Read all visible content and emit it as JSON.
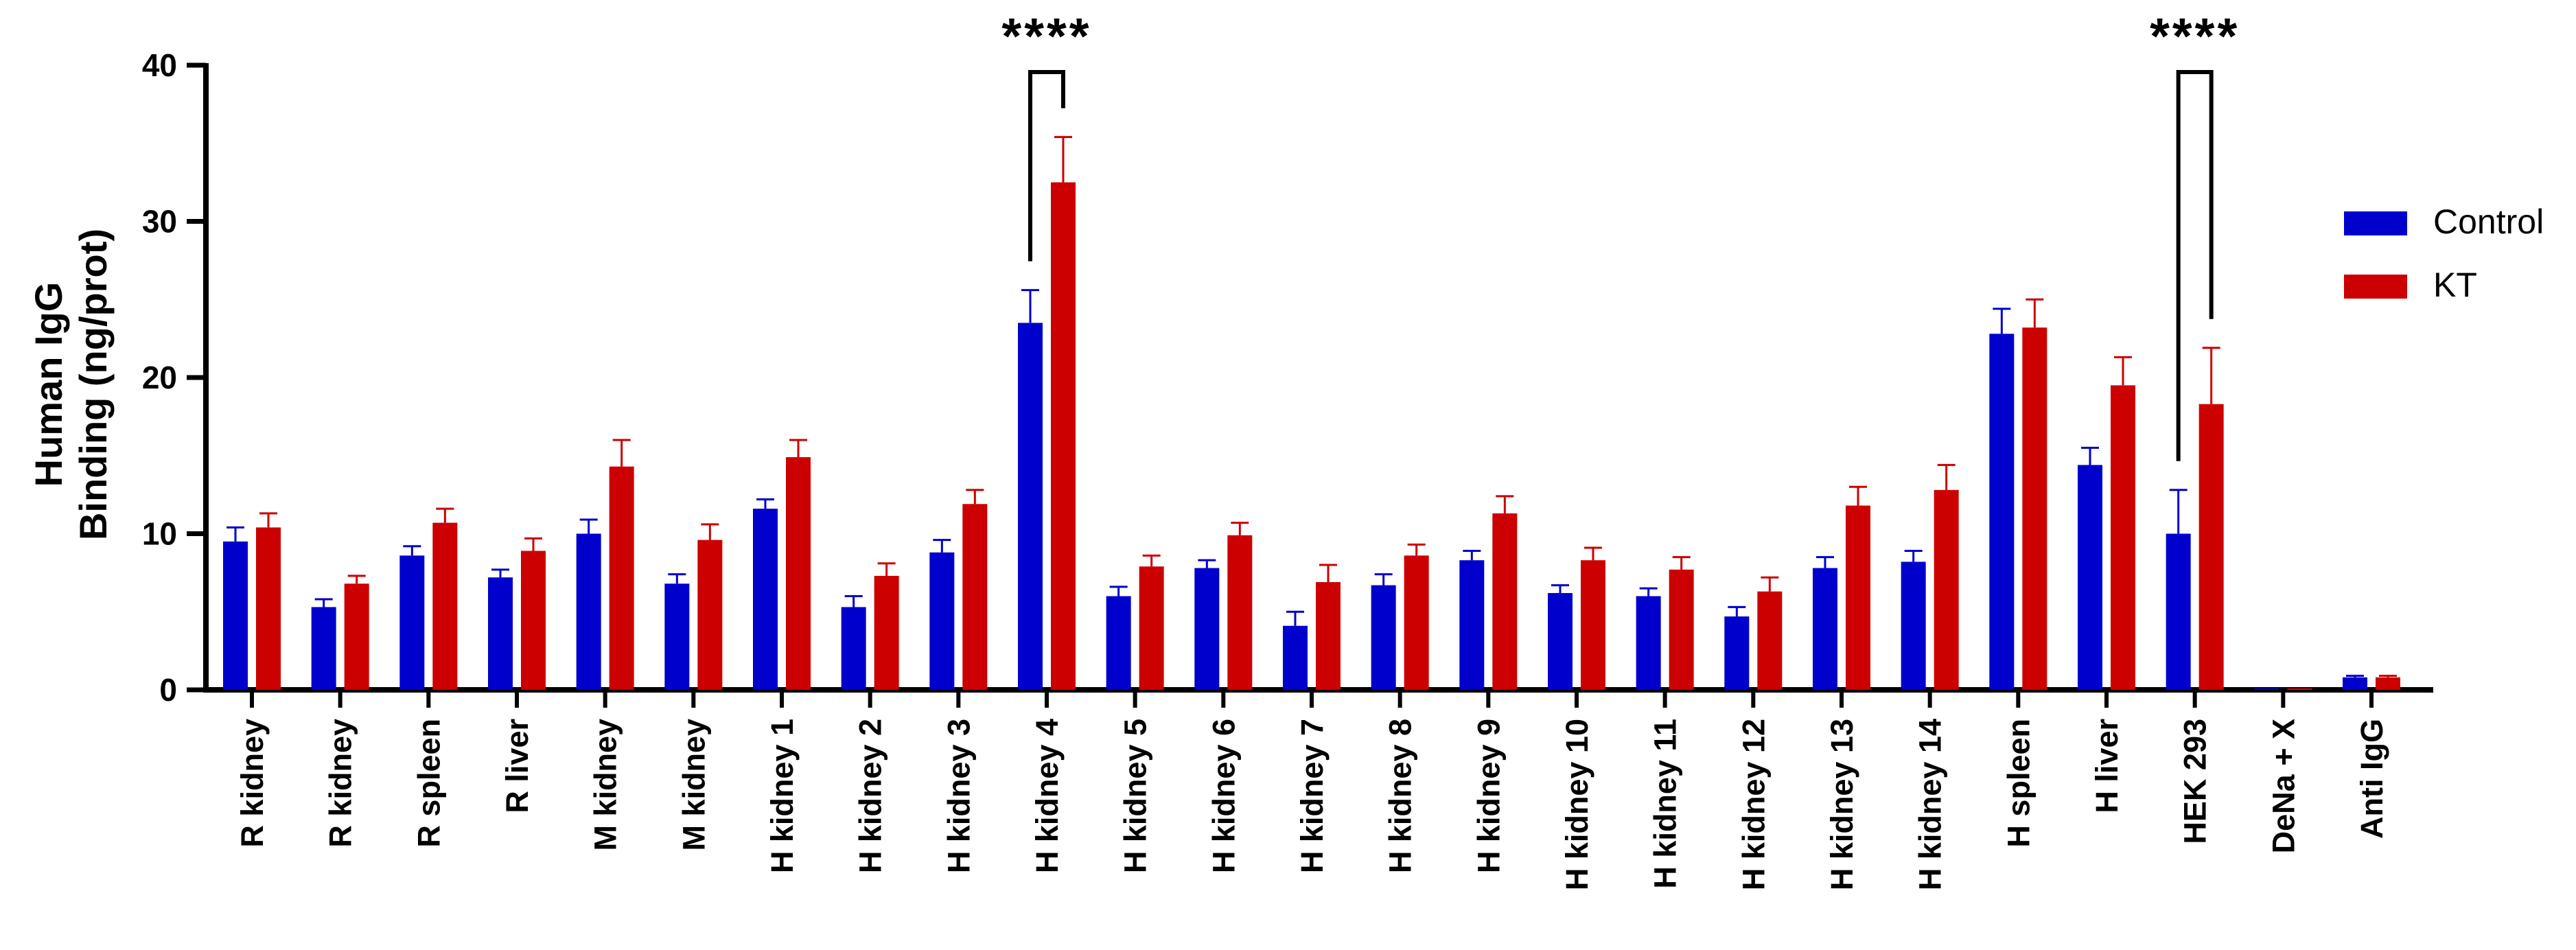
{
  "chart_data": {
    "type": "bar",
    "title": "",
    "ylabel_lines": [
      "Human IgG",
      "Binding (ng/prot)"
    ],
    "xlabel": "",
    "ylim": [
      0,
      40
    ],
    "yticks": [
      0,
      10,
      20,
      30,
      40
    ],
    "grid": false,
    "legend_position": "right",
    "categories": [
      "R kidney",
      "R kidney",
      "R spleen",
      "R liver",
      "M kidney",
      "M kidney",
      "H kidney 1",
      "H kidney 2",
      "H kidney 3",
      "H kidney 4",
      "H kidney 5",
      "H kidney 6",
      "H kidney 7",
      "H kidney 8",
      "H kidney 9",
      "H kidney 10",
      "H kidney 11",
      "H kidney 12",
      "H kidney 13",
      "H kidney 14",
      "H spleen",
      "H liver",
      "HEK 293",
      "DeNa + X",
      "Anti IgG"
    ],
    "series": [
      {
        "name": "Control",
        "color": "#0000cc",
        "values": [
          9.5,
          5.3,
          8.6,
          7.2,
          10.0,
          6.8,
          11.6,
          5.3,
          8.8,
          23.5,
          6.0,
          7.8,
          4.1,
          6.7,
          8.3,
          6.2,
          6.0,
          4.7,
          7.8,
          8.2,
          22.8,
          14.4,
          10.0,
          0.1,
          0.8
        ],
        "errors": [
          0.9,
          0.5,
          0.6,
          0.5,
          0.9,
          0.6,
          0.6,
          0.7,
          0.8,
          2.1,
          0.6,
          0.5,
          0.9,
          0.7,
          0.6,
          0.5,
          0.5,
          0.6,
          0.7,
          0.7,
          1.6,
          1.1,
          2.8,
          0.0,
          0.1
        ]
      },
      {
        "name": "KT",
        "color": "#cc0000",
        "values": [
          10.4,
          6.8,
          10.7,
          8.9,
          14.3,
          9.6,
          14.9,
          7.3,
          11.9,
          32.5,
          7.9,
          9.9,
          6.9,
          8.6,
          11.3,
          8.3,
          7.7,
          6.3,
          11.8,
          12.8,
          23.2,
          19.5,
          18.3,
          0.1,
          0.8
        ],
        "errors": [
          0.9,
          0.5,
          0.9,
          0.8,
          1.7,
          1.0,
          1.1,
          0.8,
          0.9,
          2.9,
          0.7,
          0.8,
          1.1,
          0.7,
          1.1,
          0.8,
          0.8,
          0.9,
          1.2,
          1.6,
          1.8,
          1.8,
          3.6,
          0.0,
          0.1
        ]
      }
    ],
    "annotations": [
      {
        "text": "****",
        "category_index": 9
      },
      {
        "text": "****",
        "category_index": 22
      }
    ]
  }
}
